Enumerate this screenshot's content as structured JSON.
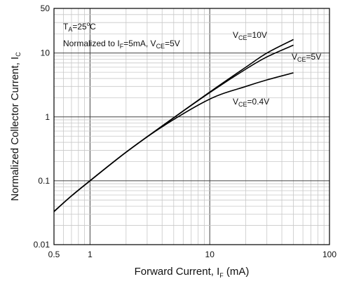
{
  "chart_data": {
    "type": "line",
    "title": "",
    "xlabel": "Forward Current, I",
    "xlabel_sub": "F",
    "xlabel_unit": " (mA)",
    "ylabel": "Normalized Collector Current, I",
    "ylabel_sub": "C",
    "x_scale": "log",
    "y_scale": "log",
    "xlim": [
      0.5,
      100
    ],
    "ylim": [
      0.01,
      50
    ],
    "x_ticks": [
      0.5,
      1,
      10,
      100
    ],
    "x_tick_labels": [
      "0.5",
      "1",
      "10",
      "100"
    ],
    "y_ticks": [
      0.01,
      0.1,
      1,
      10,
      50
    ],
    "y_tick_labels": [
      "0.01",
      "0.1",
      "1",
      "10",
      "50"
    ],
    "grid": true,
    "annotation": {
      "ta_main": "T",
      "ta_sub": "A",
      "ta_eq": "=25",
      "ta_sup": "o",
      "ta_unit": "C",
      "norm_text": "Normalized to I",
      "norm_sub_f": "F",
      "norm_mid": "=5mA, V",
      "norm_sub_ce": "CE",
      "norm_end": "=5V"
    },
    "series": [
      {
        "name": "VCE=10V",
        "label_main": "V",
        "label_sub": "CE",
        "label_end": "=10V",
        "x": [
          0.5,
          0.7,
          1,
          2,
          4,
          10,
          20,
          30,
          50
        ],
        "y": [
          0.033,
          0.058,
          0.1,
          0.28,
          0.72,
          2.45,
          6.0,
          10.0,
          16.3
        ]
      },
      {
        "name": "VCE=5V",
        "label_main": "V",
        "label_sub": "CE",
        "label_end": "=5V",
        "x": [
          0.5,
          0.7,
          1,
          2,
          4,
          10,
          20,
          30,
          50
        ],
        "y": [
          0.033,
          0.058,
          0.1,
          0.28,
          0.72,
          2.4,
          5.6,
          8.7,
          13.3
        ]
      },
      {
        "name": "VCE=0.4V",
        "label_main": "V",
        "label_sub": "CE",
        "label_end": "=0.4V",
        "x": [
          0.5,
          0.7,
          1,
          2,
          4,
          10,
          20,
          30,
          50
        ],
        "y": [
          0.033,
          0.058,
          0.1,
          0.28,
          0.7,
          1.9,
          3.0,
          3.8,
          4.9
        ]
      }
    ]
  }
}
